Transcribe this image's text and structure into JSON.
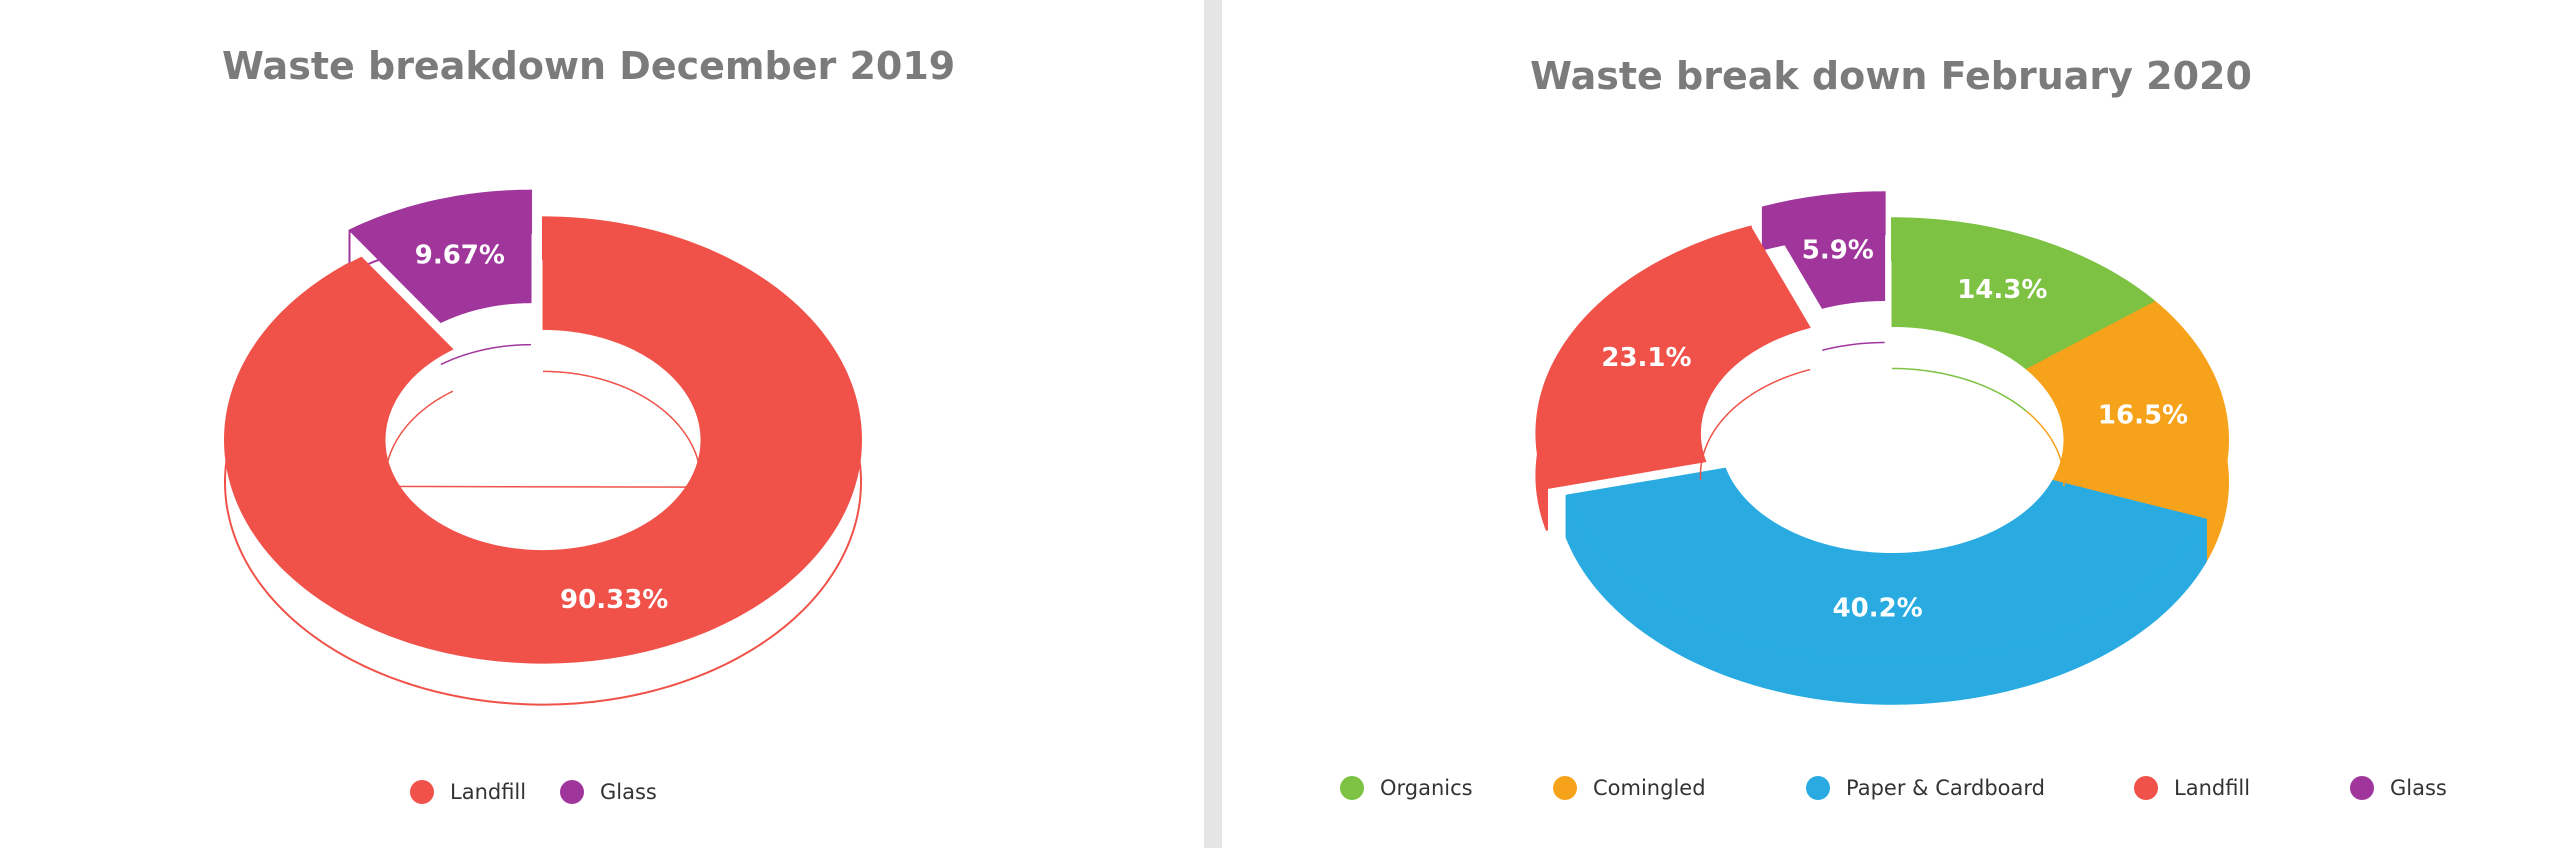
{
  "chart_data": [
    {
      "type": "pie",
      "title": "Waste breakdown December 2019",
      "slices": [
        {
          "label": "Landfill",
          "value": 90.33,
          "display": "90.33%",
          "color": "#f0524a"
        },
        {
          "label": "Glass",
          "value": 9.67,
          "display": "9.67%",
          "color": "#a0369b"
        }
      ],
      "legend_position": "bottom"
    },
    {
      "type": "pie",
      "title": "Waste break down February 2020",
      "slices": [
        {
          "label": "Organics",
          "value": 14.3,
          "display": "14.3%",
          "color": "#7dc242"
        },
        {
          "label": "Comingled",
          "value": 16.5,
          "display": "16.5%",
          "color": "#f7a21b"
        },
        {
          "label": "Paper & Cardboard",
          "value": 40.2,
          "display": "40.2%",
          "color": "#29abe2"
        },
        {
          "label": "Landfill",
          "value": 23.1,
          "display": "23.1%",
          "color": "#f0524a"
        },
        {
          "label": "Glass",
          "value": 5.9,
          "display": "5.9%",
          "color": "#a0369b"
        }
      ],
      "legend_position": "bottom"
    }
  ]
}
